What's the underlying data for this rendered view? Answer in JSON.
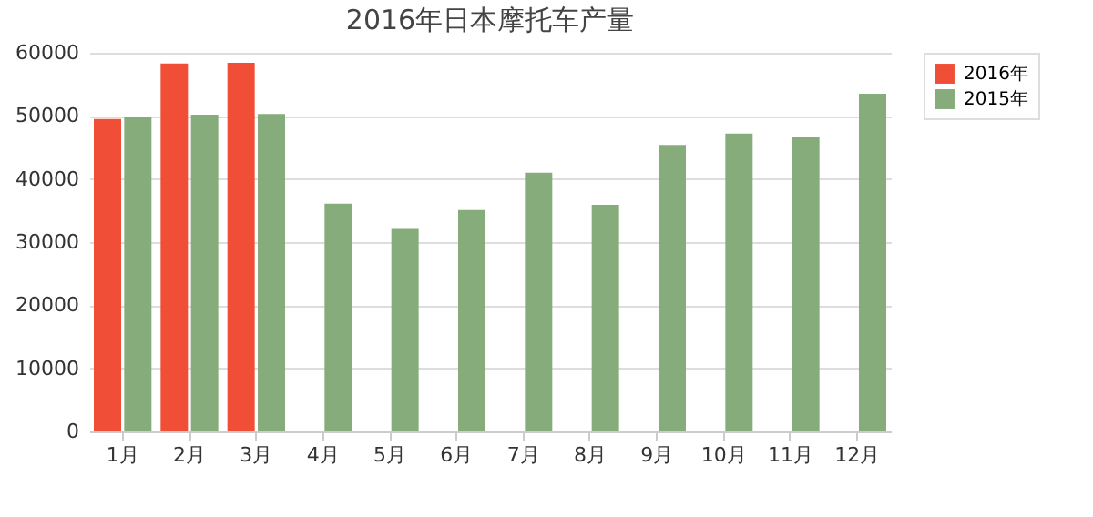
{
  "chart_data": {
    "type": "bar",
    "title": "2016年日本摩托车产量",
    "categories": [
      "1月",
      "2月",
      "3月",
      "4月",
      "5月",
      "6月",
      "7月",
      "8月",
      "9月",
      "10月",
      "11月",
      "12月"
    ],
    "series": [
      {
        "name": "2016年",
        "color": "#f04e37",
        "values": [
          49500,
          58300,
          58400,
          null,
          null,
          null,
          null,
          null,
          null,
          null,
          null,
          null
        ]
      },
      {
        "name": "2015年",
        "color": "#86ac7c",
        "values": [
          49800,
          50200,
          50300,
          36100,
          32100,
          35100,
          41000,
          35900,
          45400,
          47200,
          46600,
          53500
        ]
      }
    ],
    "ylim": [
      0,
      60000
    ],
    "yticks": [
      0,
      10000,
      20000,
      30000,
      40000,
      50000,
      60000
    ],
    "grid": "y",
    "legend": "top right"
  }
}
